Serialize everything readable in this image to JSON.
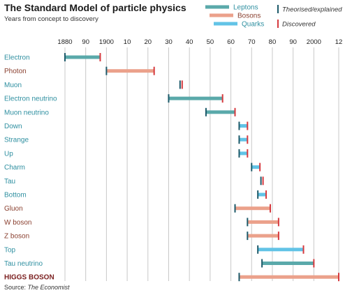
{
  "title": "The Standard Model of particle physics",
  "subtitle": "Years from concept to discovery",
  "source_prefix": "Source: ",
  "source_name": "The Economist",
  "colors": {
    "leptons": "#5aa9aa",
    "bosons": "#eba18b",
    "quarks": "#62c3e6",
    "theorised": "#1d5a6a",
    "discovered": "#d63a3f",
    "label_leptons": "#2e8fa0",
    "label_bosons": "#8a4030",
    "label_quarks": "#2e8fa0",
    "label_higgs": "#7a1e1e",
    "grid": "#c8c8c8"
  },
  "chart_data": {
    "type": "range-bar",
    "title": "The Standard Model of particle physics",
    "subtitle": "Years from concept to discovery",
    "x_ticks": [
      1880,
      1890,
      1900,
      1910,
      1920,
      1930,
      1940,
      1950,
      1960,
      1970,
      1980,
      1990,
      2000,
      2012
    ],
    "x_tick_labels": [
      "1880",
      "90",
      "1900",
      "10",
      "20",
      "30",
      "40",
      "50",
      "60",
      "70",
      "80",
      "90",
      "2000",
      "12"
    ],
    "xlim": [
      1880,
      2012
    ],
    "grid": true,
    "legend": {
      "position": "top-right",
      "families": [
        {
          "key": "leptons",
          "label": "Leptons"
        },
        {
          "key": "bosons",
          "label": "Bosons"
        },
        {
          "key": "quarks",
          "label": "Quarks"
        }
      ],
      "markers": [
        {
          "key": "theorised",
          "label": "Theorised/explained"
        },
        {
          "key": "discovered",
          "label": "Discovered"
        }
      ]
    },
    "rows": [
      {
        "name": "Electron",
        "family": "leptons",
        "theorised": 1874,
        "discovered": 1897
      },
      {
        "name": "Photon",
        "family": "bosons",
        "theorised": 1900,
        "discovered": 1923
      },
      {
        "name": "Muon",
        "family": "leptons",
        "theorised": 1936,
        "discovered": 1936
      },
      {
        "name": "Electron neutrino",
        "family": "leptons",
        "theorised": 1930,
        "discovered": 1956
      },
      {
        "name": "Muon neutrino",
        "family": "leptons",
        "theorised": 1948,
        "discovered": 1962
      },
      {
        "name": "Down",
        "family": "quarks",
        "theorised": 1964,
        "discovered": 1968
      },
      {
        "name": "Strange",
        "family": "quarks",
        "theorised": 1964,
        "discovered": 1968
      },
      {
        "name": "Up",
        "family": "quarks",
        "theorised": 1964,
        "discovered": 1968
      },
      {
        "name": "Charm",
        "family": "quarks",
        "theorised": 1970,
        "discovered": 1974
      },
      {
        "name": "Tau",
        "family": "leptons",
        "theorised": 1975,
        "discovered": 1975
      },
      {
        "name": "Bottom",
        "family": "quarks",
        "theorised": 1973,
        "discovered": 1977
      },
      {
        "name": "Gluon",
        "family": "bosons",
        "theorised": 1962,
        "discovered": 1979
      },
      {
        "name": "W boson",
        "family": "bosons",
        "theorised": 1968,
        "discovered": 1983
      },
      {
        "name": "Z boson",
        "family": "bosons",
        "theorised": 1968,
        "discovered": 1983
      },
      {
        "name": "Top",
        "family": "quarks",
        "theorised": 1973,
        "discovered": 1995
      },
      {
        "name": "Tau neutrino",
        "family": "leptons",
        "theorised": 1975,
        "discovered": 2000
      },
      {
        "name": "HIGGS BOSON",
        "family": "higgs",
        "theorised": 1964,
        "discovered": 2012
      }
    ]
  }
}
